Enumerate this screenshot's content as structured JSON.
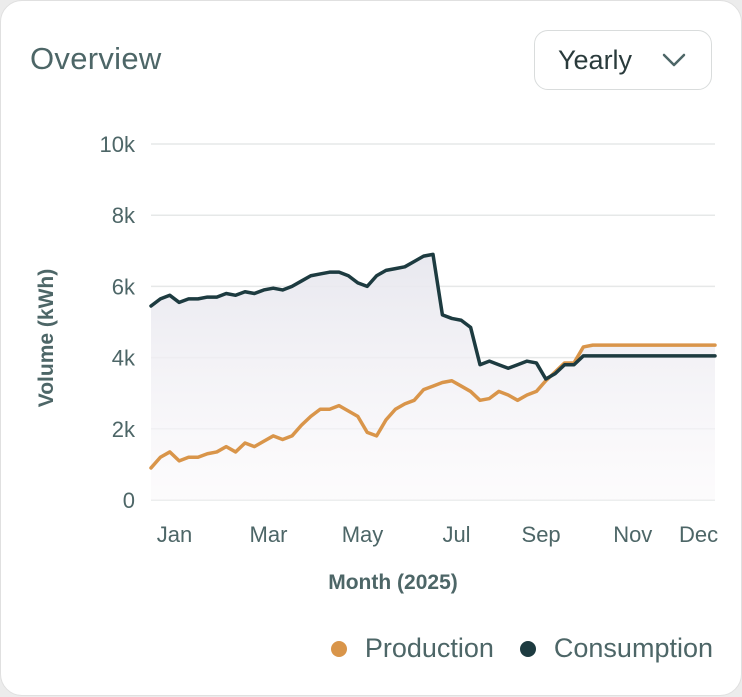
{
  "header": {
    "title": "Overview",
    "period_select": {
      "selected": "Yearly",
      "icon": "chevron-down-icon"
    }
  },
  "colors": {
    "production": "#d9954a",
    "consumption": "#1d3b40",
    "grid": "#e6e8e8",
    "axis_text": "#4d6667"
  },
  "chart_data": {
    "type": "line",
    "xlabel": "Month (2025)",
    "ylabel": "Volume (kWh)",
    "ylim": [
      0,
      10000
    ],
    "yticks": [
      0,
      2000,
      4000,
      6000,
      8000,
      10000
    ],
    "ytick_labels": [
      "0",
      "2k",
      "4k",
      "6k",
      "8k",
      "10k"
    ],
    "xlim": [
      0,
      12
    ],
    "xticks": [
      0.5,
      2.5,
      4.5,
      6.5,
      8.3,
      10.25,
      11.65
    ],
    "xtick_labels": [
      "Jan",
      "Mar",
      "May",
      "Jul",
      "Sep",
      "Nov",
      "Dec"
    ],
    "grid": true,
    "legend": "bottom-right",
    "x": [
      0,
      0.2,
      0.4,
      0.6,
      0.8,
      1.0,
      1.2,
      1.4,
      1.6,
      1.8,
      2.0,
      2.2,
      2.4,
      2.6,
      2.8,
      3.0,
      3.2,
      3.4,
      3.6,
      3.8,
      4.0,
      4.2,
      4.4,
      4.6,
      4.8,
      5.0,
      5.2,
      5.4,
      5.6,
      5.8,
      6.0,
      6.2,
      6.4,
      6.6,
      6.8,
      7.0,
      7.2,
      7.4,
      7.6,
      7.8,
      8.0,
      8.2,
      8.4,
      8.6,
      8.8,
      9.0,
      9.2,
      9.4,
      9.6,
      9.8,
      10.0,
      10.2,
      10.4,
      10.6,
      10.8,
      11.0,
      11.2,
      11.4,
      11.6,
      11.8,
      12.0
    ],
    "series": [
      {
        "name": "Production",
        "values": [
          900,
          1200,
          1350,
          1100,
          1200,
          1200,
          1300,
          1350,
          1500,
          1350,
          1600,
          1500,
          1650,
          1800,
          1700,
          1800,
          2100,
          2350,
          2550,
          2550,
          2650,
          2500,
          2350,
          1900,
          1800,
          2250,
          2550,
          2700,
          2800,
          3100,
          3200,
          3300,
          3350,
          3200,
          3050,
          2800,
          2850,
          3050,
          2950,
          2800,
          2950,
          3050,
          3350,
          3600,
          3850,
          3850,
          4300,
          4350,
          4350,
          4350,
          4350,
          4350,
          4350,
          4350,
          4350,
          4350,
          4350,
          4350,
          4350,
          4350,
          4350
        ]
      },
      {
        "name": "Consumption",
        "values": [
          5450,
          5650,
          5750,
          5550,
          5650,
          5650,
          5700,
          5700,
          5800,
          5750,
          5850,
          5800,
          5900,
          5950,
          5900,
          6000,
          6150,
          6300,
          6350,
          6400,
          6400,
          6300,
          6100,
          6000,
          6300,
          6450,
          6500,
          6550,
          6700,
          6850,
          6900,
          5200,
          5100,
          5050,
          4850,
          3800,
          3900,
          3800,
          3700,
          3800,
          3900,
          3850,
          3400,
          3550,
          3800,
          3800,
          4050,
          4050,
          4050,
          4050,
          4050,
          4050,
          4050,
          4050,
          4050,
          4050,
          4050,
          4050,
          4050,
          4050,
          4050
        ]
      }
    ]
  },
  "legend": {
    "items": [
      {
        "label": "Production",
        "color": "#d9954a"
      },
      {
        "label": "Consumption",
        "color": "#1d3b40"
      }
    ]
  }
}
